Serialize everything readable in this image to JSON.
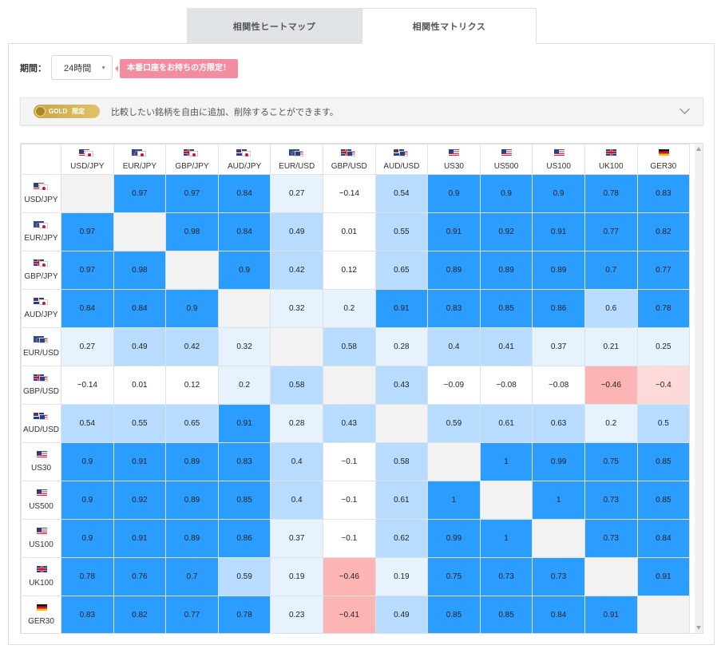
{
  "tabs": [
    {
      "label": "相関性ヒートマップ",
      "active": false
    },
    {
      "label": "相関性マトリクス",
      "active": true
    }
  ],
  "period": {
    "label": "期間：",
    "value": "24時間"
  },
  "badge": {
    "text": "本番口座をお持ちの方限定！",
    "color": "#f28da0"
  },
  "gold_bar": {
    "pill_text": "GOLD",
    "pill_limit": "限定",
    "text": "比較したい銘柄を自由に追加、削除することができます。"
  },
  "colors": {
    "strong_positive": "#2b9dff",
    "medium_positive": "#b7dcff",
    "weak_positive": "#e6f3ff",
    "neutral": "#ffffff",
    "weak_negative": "#fdd9da",
    "medium_negative": "#fcb4b5",
    "diagonal": "#f2f2f2"
  },
  "matrix": {
    "symbols": [
      {
        "label": "USD/JPY",
        "flags": [
          "us",
          "jp"
        ]
      },
      {
        "label": "EUR/JPY",
        "flags": [
          "eu",
          "jp"
        ]
      },
      {
        "label": "GBP/JPY",
        "flags": [
          "gb",
          "jp"
        ]
      },
      {
        "label": "AUD/JPY",
        "flags": [
          "au",
          "jp"
        ]
      },
      {
        "label": "EUR/USD",
        "flags": [
          "eu",
          "us"
        ]
      },
      {
        "label": "GBP/USD",
        "flags": [
          "gb",
          "us"
        ]
      },
      {
        "label": "AUD/USD",
        "flags": [
          "au",
          "us"
        ]
      },
      {
        "label": "US30",
        "flags": [
          "us"
        ],
        "cfd": true
      },
      {
        "label": "US500",
        "flags": [
          "us"
        ],
        "cfd": true
      },
      {
        "label": "US100",
        "flags": [
          "us"
        ],
        "cfd": true
      },
      {
        "label": "UK100",
        "flags": [
          "gb"
        ],
        "cfd": true
      },
      {
        "label": "GER30",
        "flags": [
          "de"
        ],
        "cfd": true
      }
    ],
    "values": [
      [
        null,
        0.97,
        0.97,
        0.84,
        0.27,
        -0.14,
        0.54,
        0.9,
        0.9,
        0.9,
        0.78,
        0.83
      ],
      [
        0.97,
        null,
        0.98,
        0.84,
        0.49,
        0.01,
        0.55,
        0.91,
        0.92,
        0.91,
        0.77,
        0.82
      ],
      [
        0.97,
        0.98,
        null,
        0.9,
        0.42,
        0.12,
        0.65,
        0.89,
        0.89,
        0.89,
        0.7,
        0.77
      ],
      [
        0.84,
        0.84,
        0.9,
        null,
        0.32,
        0.2,
        0.91,
        0.83,
        0.85,
        0.86,
        0.6,
        0.78
      ],
      [
        0.27,
        0.49,
        0.42,
        0.32,
        null,
        0.58,
        0.28,
        0.4,
        0.41,
        0.37,
        0.21,
        0.25
      ],
      [
        -0.14,
        0.01,
        0.12,
        0.2,
        0.58,
        null,
        0.43,
        -0.09,
        -0.08,
        -0.08,
        -0.46,
        -0.4
      ],
      [
        0.54,
        0.55,
        0.65,
        0.91,
        0.28,
        0.43,
        null,
        0.59,
        0.61,
        0.63,
        0.2,
        0.5
      ],
      [
        0.9,
        0.91,
        0.89,
        0.83,
        0.4,
        -0.1,
        0.58,
        null,
        1,
        0.99,
        0.75,
        0.85
      ],
      [
        0.9,
        0.92,
        0.89,
        0.85,
        0.4,
        -0.1,
        0.61,
        1,
        null,
        1,
        0.73,
        0.85
      ],
      [
        0.9,
        0.91,
        0.89,
        0.86,
        0.37,
        -0.1,
        0.62,
        0.99,
        1,
        null,
        0.73,
        0.84
      ],
      [
        0.78,
        0.76,
        0.7,
        0.59,
        0.19,
        -0.46,
        0.19,
        0.75,
        0.73,
        0.73,
        null,
        0.91
      ],
      [
        0.83,
        0.82,
        0.77,
        0.78,
        0.23,
        -0.41,
        0.49,
        0.85,
        0.85,
        0.84,
        0.91,
        null
      ]
    ],
    "cell_levels": [
      [
        "diag",
        "sp",
        "sp",
        "sp",
        "wp",
        "n",
        "mp",
        "sp",
        "sp",
        "sp",
        "sp",
        "sp"
      ],
      [
        "sp",
        "diag",
        "sp",
        "sp",
        "mp",
        "n",
        "mp",
        "sp",
        "sp",
        "sp",
        "sp",
        "sp"
      ],
      [
        "sp",
        "sp",
        "diag",
        "sp",
        "mp",
        "n",
        "mp",
        "sp",
        "sp",
        "sp",
        "sp",
        "sp"
      ],
      [
        "sp",
        "sp",
        "sp",
        "diag",
        "wp",
        "wp",
        "sp",
        "sp",
        "sp",
        "sp",
        "mp",
        "sp"
      ],
      [
        "wp",
        "mp",
        "mp",
        "wp",
        "diag",
        "mp",
        "wp",
        "mp",
        "mp",
        "wp",
        "wp",
        "wp"
      ],
      [
        "n",
        "n",
        "n",
        "wp",
        "mp",
        "diag",
        "mp",
        "n",
        "n",
        "n",
        "mn",
        "wn"
      ],
      [
        "mp",
        "mp",
        "mp",
        "sp",
        "wp",
        "mp",
        "diag",
        "mp",
        "mp",
        "mp",
        "wp",
        "mp"
      ],
      [
        "sp",
        "sp",
        "sp",
        "sp",
        "mp",
        "n",
        "mp",
        "diag",
        "sp",
        "sp",
        "sp",
        "sp"
      ],
      [
        "sp",
        "sp",
        "sp",
        "sp",
        "mp",
        "n",
        "mp",
        "sp",
        "diag",
        "sp",
        "sp",
        "sp"
      ],
      [
        "sp",
        "sp",
        "sp",
        "sp",
        "wp",
        "n",
        "mp",
        "sp",
        "sp",
        "diag",
        "sp",
        "sp"
      ],
      [
        "sp",
        "sp",
        "sp",
        "mp",
        "wp",
        "mn",
        "wp",
        "sp",
        "sp",
        "sp",
        "diag",
        "sp"
      ],
      [
        "sp",
        "sp",
        "sp",
        "sp",
        "wp",
        "mn",
        "mp",
        "sp",
        "sp",
        "sp",
        "sp",
        "diag"
      ]
    ]
  }
}
